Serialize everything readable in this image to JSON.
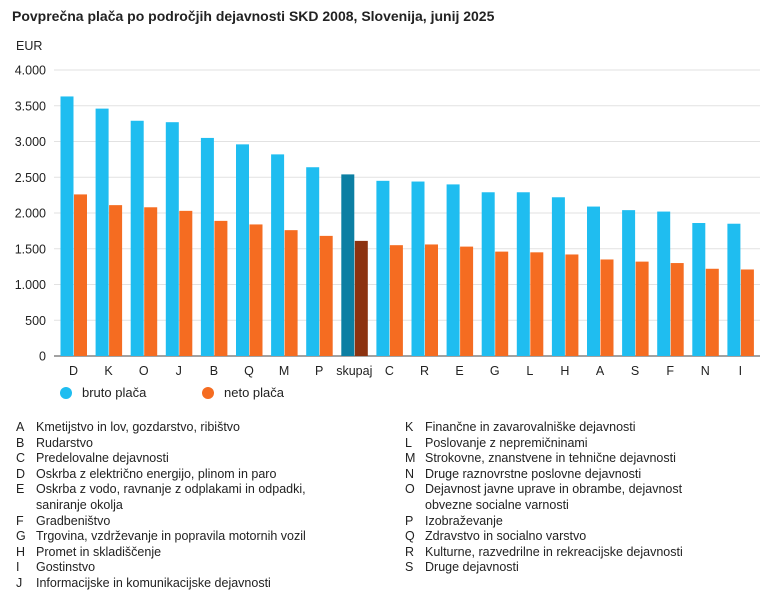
{
  "chart_data": {
    "type": "bar",
    "title": "Povprečna plača po področjih dejavnosti SKD 2008, Slovenija, junij 2025",
    "ylabel": "EUR",
    "ylim": [
      0,
      4000
    ],
    "yticks": [
      0,
      500,
      1000,
      1500,
      2000,
      2500,
      3000,
      3500,
      4000
    ],
    "ytick_labels": [
      "0",
      "500",
      "1.000",
      "1.500",
      "2.000",
      "2.500",
      "3.000",
      "3.500",
      "4.000"
    ],
    "grid": true,
    "categories": [
      "D",
      "K",
      "O",
      "J",
      "B",
      "Q",
      "M",
      "P",
      "skupaj",
      "C",
      "R",
      "E",
      "G",
      "L",
      "H",
      "A",
      "S",
      "F",
      "N",
      "I"
    ],
    "highlight_category": "skupaj",
    "series": [
      {
        "name": "bruto plača",
        "color": "#1fbdf0",
        "highlight_color": "#0c7fa3",
        "values": [
          3630,
          3460,
          3290,
          3270,
          3050,
          2960,
          2820,
          2640,
          2540,
          2450,
          2440,
          2400,
          2290,
          2290,
          2220,
          2090,
          2040,
          2020,
          1860,
          1850
        ]
      },
      {
        "name": "neto plača",
        "color": "#f56c21",
        "highlight_color": "#8c3210",
        "values": [
          2260,
          2110,
          2080,
          2030,
          1890,
          1840,
          1760,
          1680,
          1610,
          1550,
          1560,
          1530,
          1460,
          1450,
          1420,
          1350,
          1320,
          1300,
          1220,
          1210
        ]
      }
    ]
  },
  "legend": {
    "items": [
      {
        "label": "bruto plača",
        "color": "#1fbdf0"
      },
      {
        "label": "neto plača",
        "color": "#f56c21"
      }
    ]
  },
  "key": {
    "left": [
      {
        "code": "A",
        "text": "Kmetijstvo in lov, gozdarstvo, ribištvo"
      },
      {
        "code": "B",
        "text": "Rudarstvo"
      },
      {
        "code": "C",
        "text": "Predelovalne dejavnosti"
      },
      {
        "code": "D",
        "text": "Oskrba z električno energijo, plinom in paro"
      },
      {
        "code": "E",
        "text": "Oskrba z vodo, ravnanje z odplakami in odpadki, saniranje okolja"
      },
      {
        "code": "F",
        "text": "Gradbeništvo"
      },
      {
        "code": "G",
        "text": "Trgovina, vzdrževanje in popravila motornih vozil"
      },
      {
        "code": "H",
        "text": "Promet in skladiščenje"
      },
      {
        "code": "I",
        "text": "Gostinstvo"
      },
      {
        "code": "J",
        "text": "Informacijske in komunikacijske dejavnosti"
      }
    ],
    "right": [
      {
        "code": "K",
        "text": "Finančne in zavarovalniške dejavnosti"
      },
      {
        "code": "L",
        "text": "Poslovanje z nepremičninami"
      },
      {
        "code": "M",
        "text": "Strokovne, znanstvene in tehnične dejavnosti"
      },
      {
        "code": "N",
        "text": "Druge raznovrstne poslovne dejavnosti"
      },
      {
        "code": "O",
        "text": "Dejavnost javne uprave in obrambe, dejavnost obvezne socialne varnosti"
      },
      {
        "code": "P",
        "text": "Izobraževanje"
      },
      {
        "code": "Q",
        "text": "Zdravstvo in socialno varstvo"
      },
      {
        "code": "R",
        "text": "Kulturne, razvedrilne in rekreacijske dejavnosti"
      },
      {
        "code": "S",
        "text": "Druge dejavnosti"
      }
    ]
  }
}
